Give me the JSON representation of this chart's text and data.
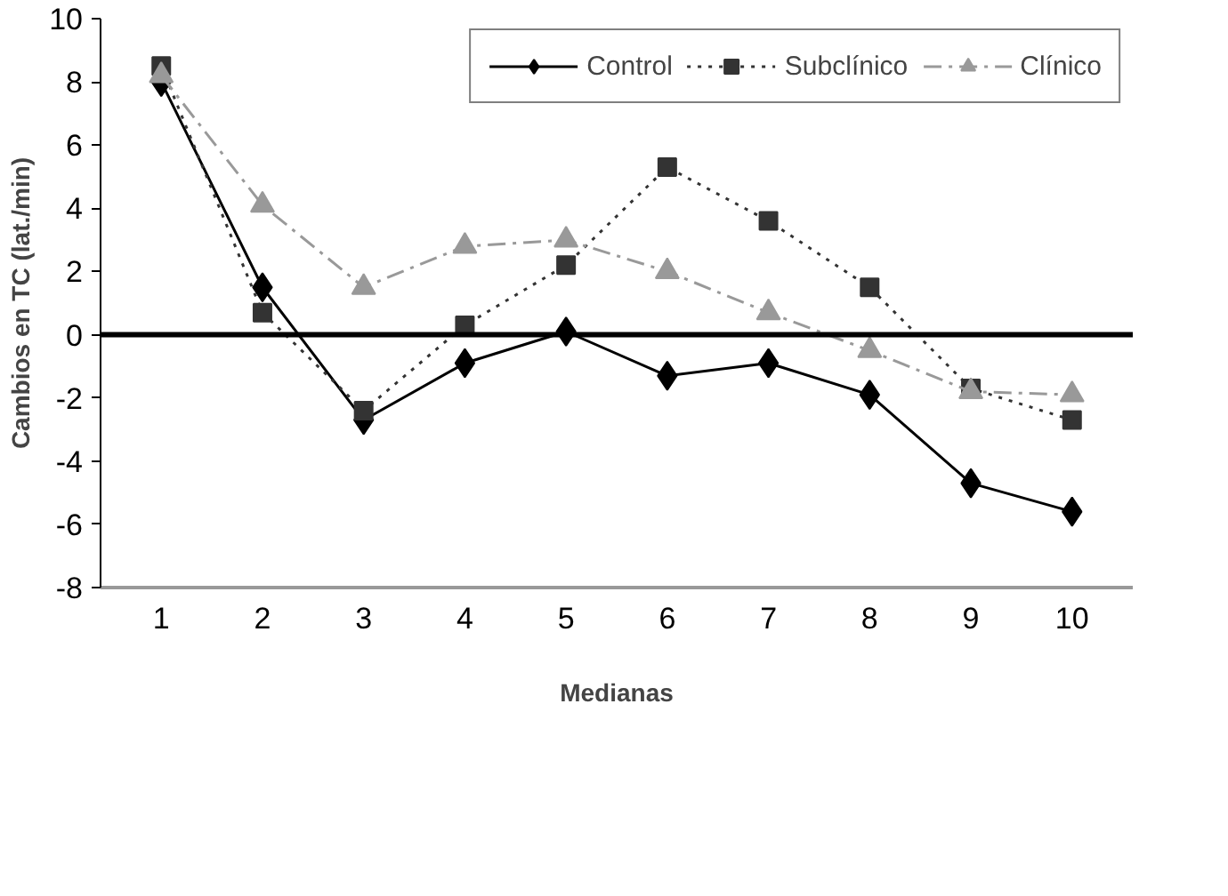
{
  "chart_data": {
    "type": "line",
    "xlabel": "Medianas",
    "ylabel": "Cambios en TC (lat./min)",
    "categories": [
      "1",
      "2",
      "3",
      "4",
      "5",
      "6",
      "7",
      "8",
      "9",
      "10"
    ],
    "ylim": [
      -8,
      10
    ],
    "yticks": [
      -8,
      -6,
      -4,
      -2,
      0,
      2,
      4,
      6,
      8,
      10
    ],
    "grid": false,
    "legend": "top",
    "ref_lines": [
      {
        "axis": "y",
        "value": 0,
        "color": "#000000"
      }
    ],
    "series": [
      {
        "name": "Control",
        "color": "#000000",
        "marker": "diamond",
        "line_style": "solid",
        "values": [
          8.0,
          1.5,
          -2.7,
          -0.9,
          0.1,
          -1.3,
          -0.9,
          -1.9,
          -4.7,
          -5.6
        ]
      },
      {
        "name": "Subclínico",
        "color": "#333333",
        "marker": "square",
        "line_style": "dotted",
        "values": [
          8.5,
          0.7,
          -2.4,
          0.3,
          2.2,
          5.3,
          3.6,
          1.5,
          -1.7,
          -2.7
        ]
      },
      {
        "name": "Clínico",
        "color": "#999999",
        "marker": "triangle",
        "line_style": "dashdot",
        "values": [
          8.2,
          4.1,
          1.5,
          2.8,
          3.0,
          2.0,
          0.7,
          -0.5,
          -1.8,
          -1.9
        ]
      }
    ]
  }
}
